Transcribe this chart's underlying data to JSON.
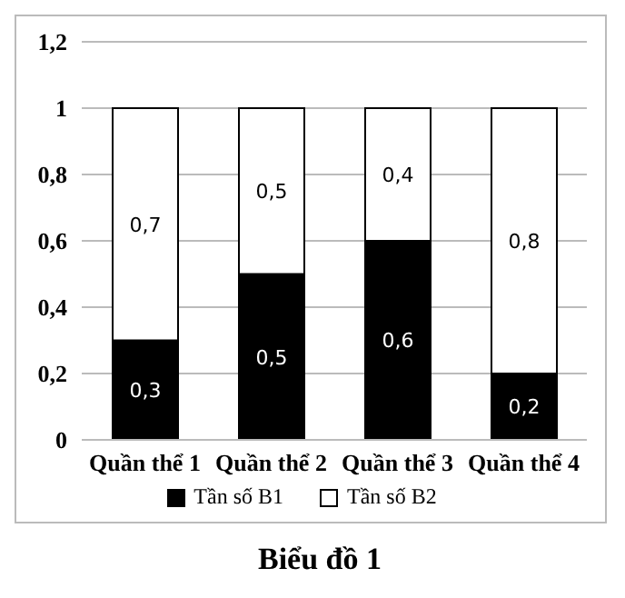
{
  "chart_data": {
    "type": "bar",
    "title": "Biểu đồ 1",
    "stacked": true,
    "categories": [
      "Quần thể 1",
      "Quần thể 2",
      "Quần thể 3",
      "Quần thể 4"
    ],
    "series": [
      {
        "name": "Tần số B1",
        "color": "#000000",
        "values": [
          0.3,
          0.5,
          0.6,
          0.2
        ],
        "value_labels": [
          "0,3",
          "0,5",
          "0,6",
          "0,2"
        ]
      },
      {
        "name": "Tần số B2",
        "color": "#ffffff",
        "values": [
          0.7,
          0.5,
          0.4,
          0.8
        ],
        "value_labels": [
          "0,7",
          "0,5",
          "0,4",
          "0,8"
        ]
      }
    ],
    "ylim": [
      0,
      1.2
    ],
    "yticks": [
      0,
      {
        "value": 0.2,
        "label": "0,2"
      },
      {
        "value": 0.4,
        "label": "0,4"
      },
      {
        "value": 0.6,
        "label": "0,6"
      },
      {
        "value": 0.8,
        "label": "0,8"
      },
      1,
      {
        "value": 1.2,
        "label": "1,2"
      }
    ],
    "grid": "y",
    "legend": "bottom"
  }
}
